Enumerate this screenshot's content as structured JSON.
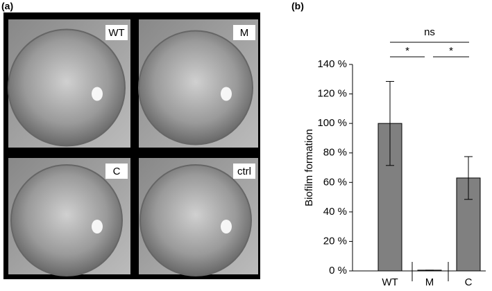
{
  "panel_labels": [
    "(a)",
    "(b)"
  ],
  "photo_labels": [
    "WT",
    "M",
    "C",
    "ctrl"
  ],
  "chart_data": {
    "type": "bar",
    "ylabel": "Biofilm formation",
    "categories": [
      "WT",
      "M",
      "C"
    ],
    "values": [
      100,
      0.5,
      63
    ],
    "errors": [
      28.5,
      0,
      14.5
    ],
    "color": "#808080",
    "ylim": [
      0,
      140
    ],
    "yticks": [
      {
        "value": 0,
        "label": "0 %"
      },
      {
        "value": 20,
        "label": "20 %"
      },
      {
        "value": 40,
        "label": "40 %"
      },
      {
        "value": 60,
        "label": "60 %"
      },
      {
        "value": 80,
        "label": "80 %"
      },
      {
        "value": 100,
        "label": "100 %"
      },
      {
        "value": 120,
        "label": "120 %"
      },
      {
        "value": 140,
        "label": "140 %"
      }
    ],
    "annotations": [
      "ns",
      "*",
      "*"
    ]
  }
}
